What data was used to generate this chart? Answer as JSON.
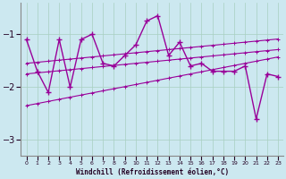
{
  "xlabel": "Windchill (Refroidissement éolien,°C)",
  "background_color": "#cce8f0",
  "grid_color": "#a8cfc0",
  "line_color": "#990099",
  "hours": [
    0,
    1,
    2,
    3,
    4,
    5,
    6,
    7,
    8,
    9,
    10,
    11,
    12,
    13,
    14,
    15,
    16,
    17,
    18,
    19,
    20,
    21,
    22,
    23
  ],
  "windchill": [
    -1.1,
    -1.7,
    -2.1,
    -1.1,
    -2.0,
    -1.1,
    -1.0,
    -1.55,
    -1.6,
    -1.4,
    -1.2,
    -0.75,
    -0.65,
    -1.4,
    -1.15,
    -1.6,
    -1.55,
    -1.7,
    -1.7,
    -1.7,
    -1.6,
    -2.6,
    -1.75,
    -1.8
  ],
  "reg_mid": [
    -1.75,
    -1.73,
    -1.71,
    -1.69,
    -1.67,
    -1.65,
    -1.63,
    -1.61,
    -1.59,
    -1.57,
    -1.55,
    -1.53,
    -1.51,
    -1.49,
    -1.47,
    -1.45,
    -1.43,
    -1.41,
    -1.39,
    -1.37,
    -1.35,
    -1.33,
    -1.31,
    -1.29
  ],
  "reg_upper": [
    -1.55,
    -1.53,
    -1.51,
    -1.49,
    -1.47,
    -1.45,
    -1.43,
    -1.41,
    -1.39,
    -1.37,
    -1.35,
    -1.33,
    -1.31,
    -1.29,
    -1.27,
    -1.25,
    -1.23,
    -1.21,
    -1.19,
    -1.17,
    -1.15,
    -1.13,
    -1.11,
    -1.09
  ],
  "reg_lower": [
    -2.35,
    -2.31,
    -2.27,
    -2.23,
    -2.19,
    -2.15,
    -2.11,
    -2.07,
    -2.03,
    -1.99,
    -1.95,
    -1.91,
    -1.87,
    -1.83,
    -1.79,
    -1.75,
    -1.71,
    -1.67,
    -1.63,
    -1.59,
    -1.55,
    -1.51,
    -1.47,
    -1.43
  ],
  "ylim": [
    -3.3,
    -0.4
  ],
  "yticks": [
    -3.0,
    -2.0,
    -1.0
  ],
  "xtick_labels": [
    "0",
    "1",
    "2",
    "3",
    "4",
    "5",
    "6",
    "7",
    "8",
    "9",
    "10",
    "11",
    "12",
    "13",
    "14",
    "15",
    "16",
    "17",
    "18",
    "19",
    "20",
    "21",
    "22",
    "23"
  ]
}
